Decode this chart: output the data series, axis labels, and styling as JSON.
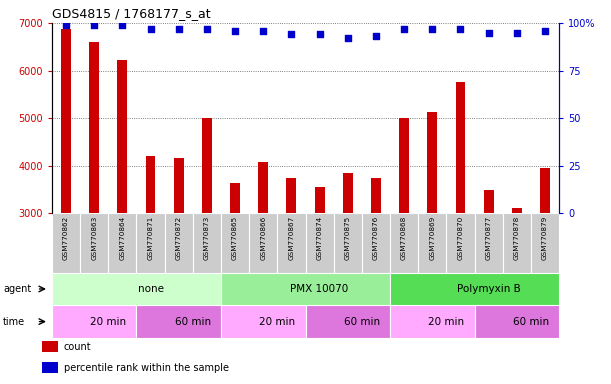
{
  "title": "GDS4815 / 1768177_s_at",
  "samples": [
    "GSM770862",
    "GSM770863",
    "GSM770864",
    "GSM770871",
    "GSM770872",
    "GSM770873",
    "GSM770865",
    "GSM770866",
    "GSM770867",
    "GSM770874",
    "GSM770875",
    "GSM770876",
    "GSM770868",
    "GSM770869",
    "GSM770870",
    "GSM770877",
    "GSM770878",
    "GSM770879"
  ],
  "counts": [
    6880,
    6600,
    6230,
    4210,
    4170,
    5000,
    3630,
    4080,
    3730,
    3560,
    3850,
    3730,
    5000,
    5120,
    5750,
    3490,
    3100,
    3960
  ],
  "percentiles": [
    99,
    99,
    99,
    97,
    97,
    97,
    96,
    96,
    94,
    94,
    92,
    93,
    97,
    97,
    97,
    95,
    95,
    96
  ],
  "bar_color": "#cc0000",
  "dot_color": "#0000cc",
  "ylim_left": [
    3000,
    7000
  ],
  "ylim_right": [
    0,
    100
  ],
  "yticks_left": [
    3000,
    4000,
    5000,
    6000,
    7000
  ],
  "yticks_right": [
    0,
    25,
    50,
    75,
    100
  ],
  "yticklabels_right": [
    "0",
    "25",
    "50",
    "75",
    "100%"
  ],
  "agent_groups": [
    {
      "label": "none",
      "start": 0,
      "end": 6,
      "color": "#ccffcc"
    },
    {
      "label": "PMX 10070",
      "start": 6,
      "end": 12,
      "color": "#99ee99"
    },
    {
      "label": "Polymyxin B",
      "start": 12,
      "end": 18,
      "color": "#55dd55"
    }
  ],
  "time_groups": [
    {
      "label": "20 min",
      "start": 0,
      "end": 3,
      "color": "#ffaaff"
    },
    {
      "label": "60 min",
      "start": 3,
      "end": 6,
      "color": "#dd77dd"
    },
    {
      "label": "20 min",
      "start": 6,
      "end": 9,
      "color": "#ffaaff"
    },
    {
      "label": "60 min",
      "start": 9,
      "end": 12,
      "color": "#dd77dd"
    },
    {
      "label": "20 min",
      "start": 12,
      "end": 15,
      "color": "#ffaaff"
    },
    {
      "label": "60 min",
      "start": 15,
      "end": 18,
      "color": "#dd77dd"
    }
  ],
  "legend_items": [
    {
      "label": "count",
      "color": "#cc0000"
    },
    {
      "label": "percentile rank within the sample",
      "color": "#0000cc"
    }
  ],
  "bg_color": "#ffffff",
  "grid_color": "#555555",
  "xtick_bg": "#cccccc",
  "agent_label": "agent",
  "time_label": "time"
}
